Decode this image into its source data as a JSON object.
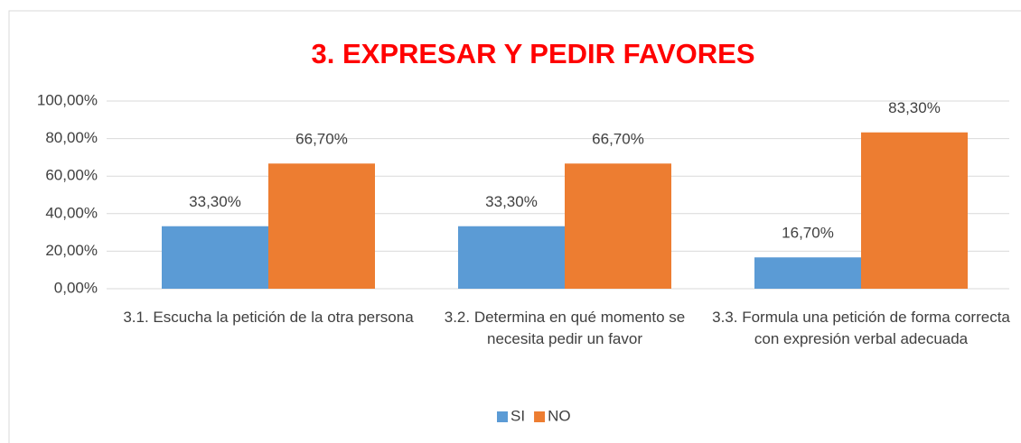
{
  "chart_data": {
    "type": "bar",
    "title": "3. EXPRESAR Y PEDIR FAVORES",
    "categories": [
      "3.1. Escucha la petición de la otra persona",
      "3.2. Determina en qué momento se necesita pedir un favor",
      "3.3. Formula una petición de forma correcta con expresión verbal adecuada"
    ],
    "series": [
      {
        "name": "SI",
        "color": "#5b9bd5",
        "values": [
          33.3,
          33.3,
          16.7
        ],
        "value_labels": [
          "33,30%",
          "33,30%",
          "16,70%"
        ]
      },
      {
        "name": "NO",
        "color": "#ed7d31",
        "values": [
          66.7,
          66.7,
          83.3
        ],
        "value_labels": [
          "66,70%",
          "66,70%",
          "83,30%"
        ]
      }
    ],
    "ylim": [
      0,
      100
    ],
    "yticks": [
      {
        "value": 0,
        "label": "0,00%"
      },
      {
        "value": 20,
        "label": "20,00%"
      },
      {
        "value": 40,
        "label": "40,00%"
      },
      {
        "value": 60,
        "label": "60,00%"
      },
      {
        "value": 80,
        "label": "80,00%"
      },
      {
        "value": 100,
        "label": "100,00%"
      }
    ],
    "grid": true,
    "legend": "bottom"
  }
}
